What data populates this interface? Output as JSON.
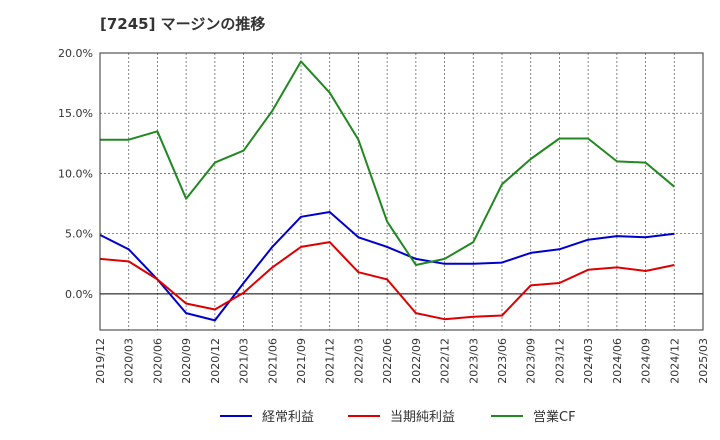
{
  "chart_data": {
    "type": "line",
    "title": "[7245]  マージンの推移",
    "xlabel": "",
    "ylabel": "",
    "ylim": [
      -3,
      20
    ],
    "yticks": [
      0,
      5,
      10,
      15,
      20
    ],
    "ytick_labels": [
      "0.0%",
      "5.0%",
      "10.0%",
      "15.0%",
      "20.0%"
    ],
    "x": [
      "2019/12",
      "2020/03",
      "2020/06",
      "2020/09",
      "2020/12",
      "2021/03",
      "2021/06",
      "2021/09",
      "2021/12",
      "2022/03",
      "2022/06",
      "2022/09",
      "2022/12",
      "2023/03",
      "2023/06",
      "2023/09",
      "2023/12",
      "2024/03",
      "2024/06",
      "2024/09",
      "2024/12",
      "2025/03"
    ],
    "grid": true,
    "legend_position": "bottom",
    "series": [
      {
        "name": "経常利益",
        "color": "#0000cc",
        "values": [
          4.9,
          3.7,
          1.2,
          -1.6,
          -2.2,
          0.9,
          3.9,
          6.4,
          6.8,
          4.7,
          3.9,
          2.9,
          2.5,
          2.5,
          2.6,
          3.4,
          3.7,
          4.5,
          4.8,
          4.7,
          5.0,
          null
        ]
      },
      {
        "name": "当期純利益",
        "color": "#dd0000",
        "values": [
          2.9,
          2.7,
          1.2,
          -0.8,
          -1.3,
          0.1,
          2.2,
          3.9,
          4.3,
          1.8,
          1.2,
          -1.6,
          -2.1,
          -1.9,
          -1.8,
          0.7,
          0.9,
          2.0,
          2.2,
          1.9,
          2.4,
          null
        ]
      },
      {
        "name": "営業CF",
        "color": "#228822",
        "values": [
          12.8,
          12.8,
          13.5,
          7.9,
          10.9,
          11.9,
          15.2,
          19.3,
          16.7,
          12.8,
          6.0,
          2.4,
          2.9,
          4.3,
          9.1,
          11.2,
          12.9,
          12.9,
          11.0,
          10.9,
          8.9,
          null
        ]
      }
    ]
  }
}
